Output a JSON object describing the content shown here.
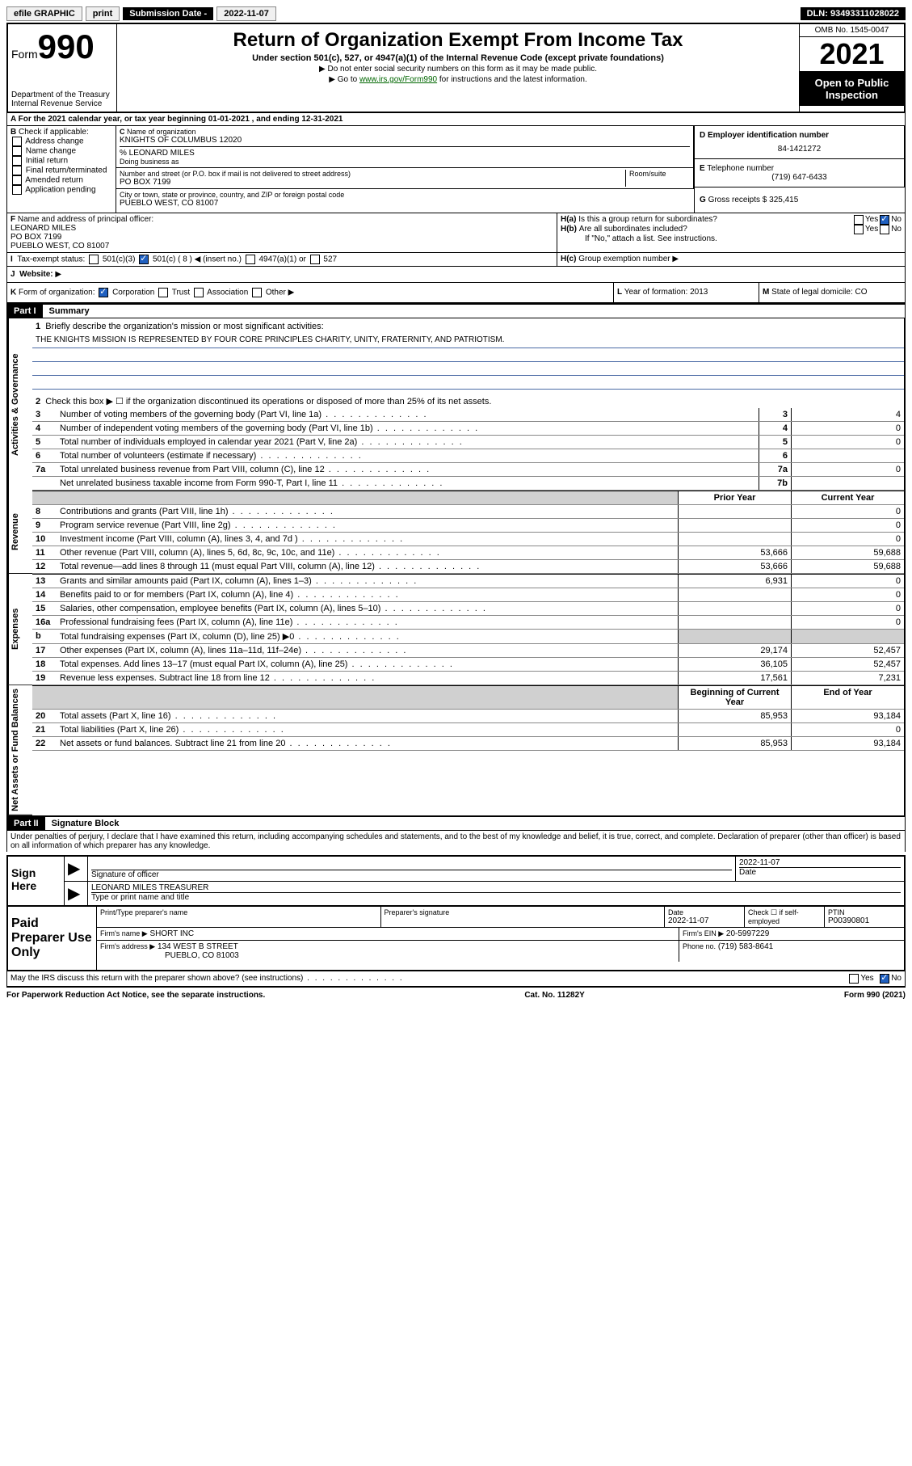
{
  "topbar": {
    "efile": "efile GRAPHIC",
    "print": "print",
    "sub_date_label": "Submission Date - ",
    "sub_date": "2022-11-07",
    "dln_label": "DLN: ",
    "dln": "93493311028022"
  },
  "header": {
    "form_label": "Form",
    "form_num": "990",
    "dept": "Department of the Treasury",
    "irs": "Internal Revenue Service",
    "title": "Return of Organization Exempt From Income Tax",
    "subtitle": "Under section 501(c), 527, or 4947(a)(1) of the Internal Revenue Code (except private foundations)",
    "note1": "Do not enter social security numbers on this form as it may be made public.",
    "note2_pre": "Go to ",
    "note2_link": "www.irs.gov/Form990",
    "note2_post": " for instructions and the latest information.",
    "omb": "OMB No. 1545-0047",
    "year": "2021",
    "open": "Open to Public Inspection"
  },
  "lineA": "For the 2021 calendar year, or tax year beginning 01-01-2021   , and ending 12-31-2021",
  "boxB": {
    "label": "Check if applicable:",
    "items": [
      "Address change",
      "Name change",
      "Initial return",
      "Final return/terminated",
      "Amended return",
      "Application pending"
    ]
  },
  "boxC": {
    "label": "Name of organization",
    "name": "KNIGHTS OF COLUMBUS 12020",
    "care_of": "% LEONARD MILES",
    "dba_label": "Doing business as",
    "addr_label": "Number and street (or P.O. box if mail is not delivered to street address)",
    "room_label": "Room/suite",
    "addr": "PO BOX 7199",
    "city_label": "City or town, state or province, country, and ZIP or foreign postal code",
    "city": "PUEBLO WEST, CO  81007"
  },
  "boxD": {
    "label": "Employer identification number",
    "val": "84-1421272"
  },
  "boxE": {
    "label": "Telephone number",
    "val": "(719) 647-6433"
  },
  "boxG": {
    "label": "Gross receipts $",
    "val": "325,415"
  },
  "boxF": {
    "label": "Name and address of principal officer:",
    "name": "LEONARD MILES",
    "addr1": "PO BOX 7199",
    "addr2": "PUEBLO WEST, CO  81007"
  },
  "boxH": {
    "a": "Is this a group return for subordinates?",
    "b": "Are all subordinates included?",
    "c_note": "If \"No,\" attach a list. See instructions.",
    "c": "Group exemption number"
  },
  "boxI": {
    "label": "Tax-exempt status:",
    "opts": [
      "501(c)(3)",
      "501(c) ( 8 ) ◀ (insert no.)",
      "4947(a)(1) or",
      "527"
    ]
  },
  "boxJ": {
    "label": "Website:"
  },
  "boxK": {
    "label": "Form of organization:",
    "opts": [
      "Corporation",
      "Trust",
      "Association",
      "Other"
    ]
  },
  "boxL": {
    "label": "Year of formation:",
    "val": "2013"
  },
  "boxM": {
    "label": "State of legal domicile:",
    "val": "CO"
  },
  "part1": {
    "header": "Part I",
    "title": "Summary",
    "q1": "Briefly describe the organization's mission or most significant activities:",
    "mission": "THE KNIGHTS MISSION IS REPRESENTED BY FOUR CORE PRINCIPLES CHARITY, UNITY, FRATERNITY, AND PATRIOTISM.",
    "q2": "Check this box ▶ ☐  if the organization discontinued its operations or disposed of more than 25% of its net assets.",
    "lines_single": [
      {
        "n": "3",
        "t": "Number of voting members of the governing body (Part VI, line 1a)",
        "box": "3",
        "v": "4"
      },
      {
        "n": "4",
        "t": "Number of independent voting members of the governing body (Part VI, line 1b)",
        "box": "4",
        "v": "0"
      },
      {
        "n": "5",
        "t": "Total number of individuals employed in calendar year 2021 (Part V, line 2a)",
        "box": "5",
        "v": "0"
      },
      {
        "n": "6",
        "t": "Total number of volunteers (estimate if necessary)",
        "box": "6",
        "v": ""
      },
      {
        "n": "7a",
        "t": "Total unrelated business revenue from Part VIII, column (C), line 12",
        "box": "7a",
        "v": "0"
      },
      {
        "n": "",
        "t": "Net unrelated business taxable income from Form 990-T, Part I, line 11",
        "box": "7b",
        "v": ""
      }
    ],
    "col_headers": {
      "prior": "Prior Year",
      "current": "Current Year",
      "boy": "Beginning of Current Year",
      "eoy": "End of Year"
    },
    "revenue": [
      {
        "n": "8",
        "t": "Contributions and grants (Part VIII, line 1h)",
        "p": "",
        "c": "0"
      },
      {
        "n": "9",
        "t": "Program service revenue (Part VIII, line 2g)",
        "p": "",
        "c": "0"
      },
      {
        "n": "10",
        "t": "Investment income (Part VIII, column (A), lines 3, 4, and 7d )",
        "p": "",
        "c": "0"
      },
      {
        "n": "11",
        "t": "Other revenue (Part VIII, column (A), lines 5, 6d, 8c, 9c, 10c, and 11e)",
        "p": "53,666",
        "c": "59,688"
      },
      {
        "n": "12",
        "t": "Total revenue—add lines 8 through 11 (must equal Part VIII, column (A), line 12)",
        "p": "53,666",
        "c": "59,688"
      }
    ],
    "expenses": [
      {
        "n": "13",
        "t": "Grants and similar amounts paid (Part IX, column (A), lines 1–3)",
        "p": "6,931",
        "c": "0"
      },
      {
        "n": "14",
        "t": "Benefits paid to or for members (Part IX, column (A), line 4)",
        "p": "",
        "c": "0"
      },
      {
        "n": "15",
        "t": "Salaries, other compensation, employee benefits (Part IX, column (A), lines 5–10)",
        "p": "",
        "c": "0"
      },
      {
        "n": "16a",
        "t": "Professional fundraising fees (Part IX, column (A), line 11e)",
        "p": "",
        "c": "0"
      },
      {
        "n": "b",
        "t": "Total fundraising expenses (Part IX, column (D), line 25) ▶0",
        "p": "shaded",
        "c": "shaded"
      },
      {
        "n": "17",
        "t": "Other expenses (Part IX, column (A), lines 11a–11d, 11f–24e)",
        "p": "29,174",
        "c": "52,457"
      },
      {
        "n": "18",
        "t": "Total expenses. Add lines 13–17 (must equal Part IX, column (A), line 25)",
        "p": "36,105",
        "c": "52,457"
      },
      {
        "n": "19",
        "t": "Revenue less expenses. Subtract line 18 from line 12",
        "p": "17,561",
        "c": "7,231"
      }
    ],
    "net": [
      {
        "n": "20",
        "t": "Total assets (Part X, line 16)",
        "p": "85,953",
        "c": "93,184"
      },
      {
        "n": "21",
        "t": "Total liabilities (Part X, line 26)",
        "p": "",
        "c": "0"
      },
      {
        "n": "22",
        "t": "Net assets or fund balances. Subtract line 21 from line 20",
        "p": "85,953",
        "c": "93,184"
      }
    ],
    "vlabels": {
      "gov": "Activities & Governance",
      "rev": "Revenue",
      "exp": "Expenses",
      "net": "Net Assets or Fund Balances"
    }
  },
  "part2": {
    "header": "Part II",
    "title": "Signature Block",
    "decl": "Under penalties of perjury, I declare that I have examined this return, including accompanying schedules and statements, and to the best of my knowledge and belief, it is true, correct, and complete. Declaration of preparer (other than officer) is based on all information of which preparer has any knowledge."
  },
  "sign": {
    "here": "Sign Here",
    "sig_label": "Signature of officer",
    "date_label": "Date",
    "date": "2022-11-07",
    "name": "LEONARD MILES TREASURER",
    "name_label": "Type or print name and title"
  },
  "prep": {
    "title": "Paid Preparer Use Only",
    "h1": "Print/Type preparer's name",
    "h2": "Preparer's signature",
    "h3": "Date",
    "date": "2022-11-07",
    "h4_label": "Check ☐ if self-employed",
    "h5": "PTIN",
    "ptin": "P00390801",
    "firm_name_label": "Firm's name ▶",
    "firm_name": "SHORT INC",
    "firm_ein_label": "Firm's EIN ▶",
    "firm_ein": "20-5997229",
    "firm_addr_label": "Firm's address ▶",
    "firm_addr1": "134 WEST B STREET",
    "firm_addr2": "PUEBLO, CO  81003",
    "phone_label": "Phone no.",
    "phone": "(719) 583-8641"
  },
  "discuss": "May the IRS discuss this return with the preparer shown above? (see instructions)",
  "footer": {
    "left": "For Paperwork Reduction Act Notice, see the separate instructions.",
    "mid": "Cat. No. 11282Y",
    "right": "Form 990 (2021)"
  },
  "yn": {
    "yes": "Yes",
    "no": "No"
  }
}
